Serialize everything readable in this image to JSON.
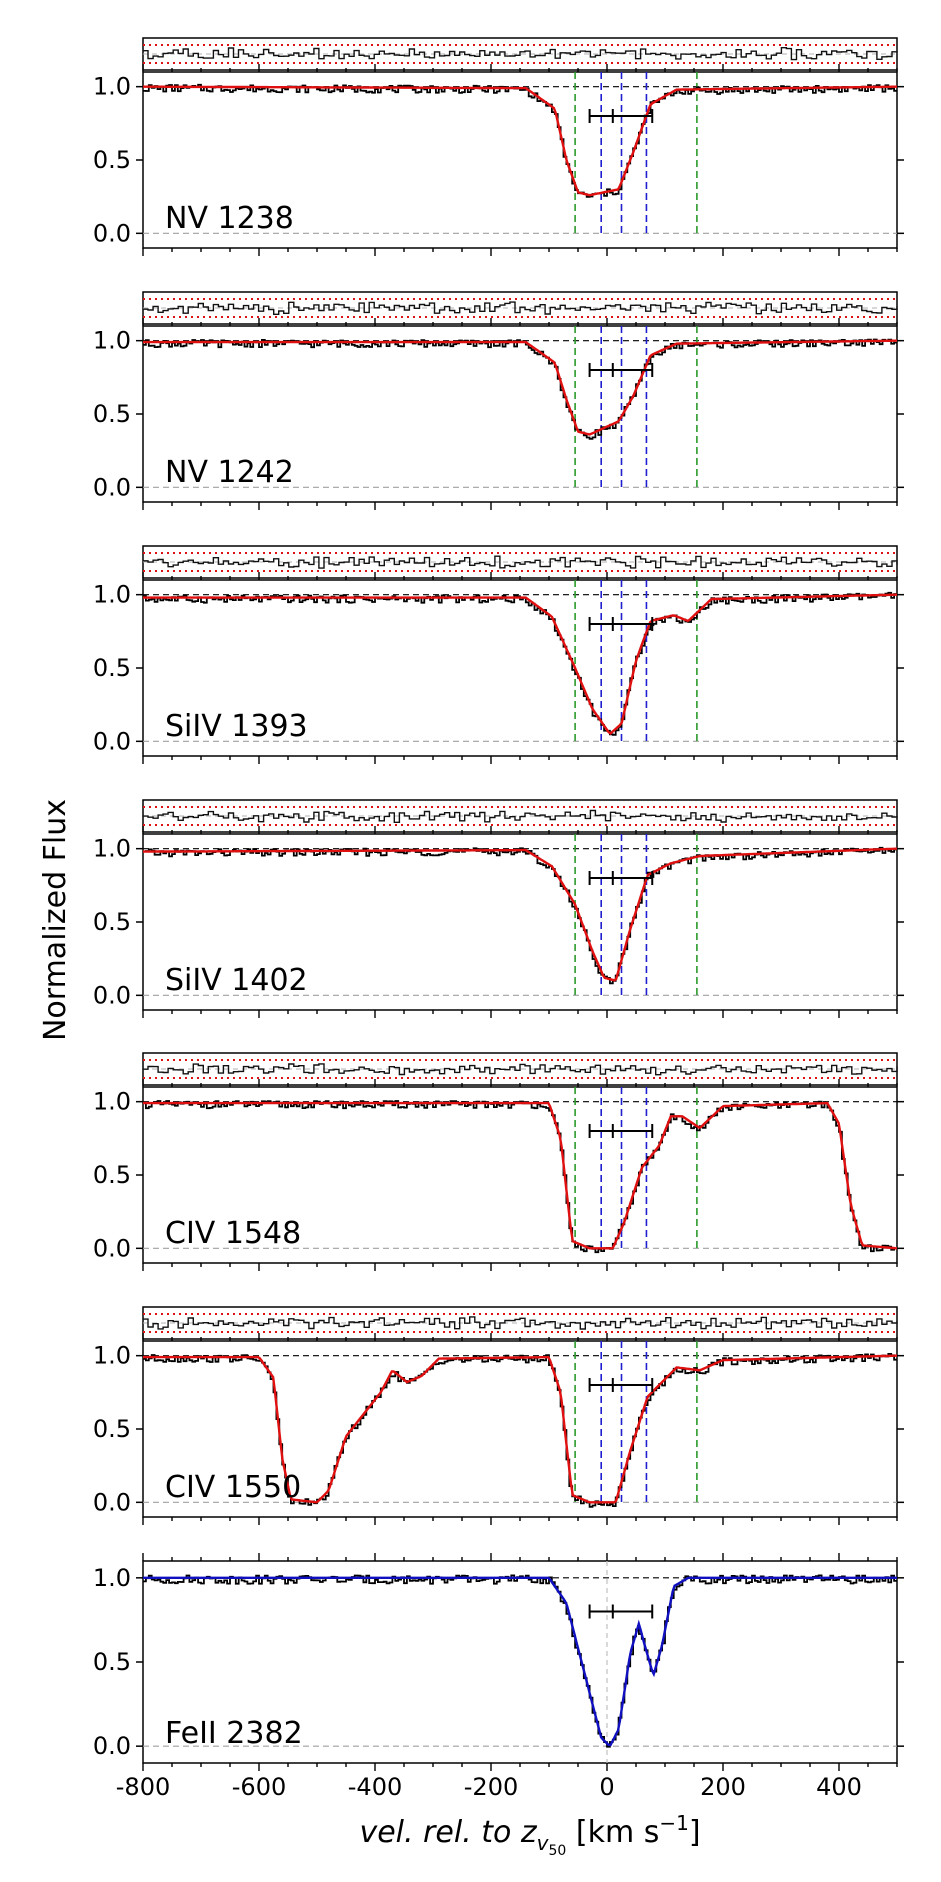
{
  "figure": {
    "ylabel": "Normalized Flux",
    "xlabel_main": "vel. rel. to z",
    "xlabel_sub": "v",
    "xlabel_subsub": "50",
    "xlabel_unit_open": " [km s",
    "xlabel_unit_exp": "−1",
    "xlabel_unit_close": "]"
  },
  "colors": {
    "data": "#000000",
    "model_red": "#e01010",
    "model_blue": "#1010c0",
    "residual_limit": "#e01010",
    "green_marker": "#2a9a2a",
    "blue_marker": "#1f1fd0",
    "zero_line": "#a0a0a0"
  },
  "chart_data": {
    "type": "line",
    "xlim": [
      -800,
      500
    ],
    "ylim": [
      -0.1,
      1.1
    ],
    "x_ticks": [
      -800,
      -600,
      -400,
      -200,
      0,
      200,
      400
    ],
    "x_tick_labels": [
      "-800",
      "-600",
      "-400",
      "-200",
      "0",
      "200",
      "400"
    ],
    "y_ticks": [
      0.0,
      0.5,
      1.0
    ],
    "y_tick_labels": [
      "0.0",
      "0.5",
      "1.0"
    ],
    "green_markers_kms": [
      -55,
      155
    ],
    "blue_markers_kms": [
      -10,
      25,
      68
    ],
    "velocity_bar": {
      "center": 10,
      "left": -30,
      "right": 78,
      "level": 0.8
    },
    "panels": [
      {
        "label": "NV 1238",
        "model_color": "red",
        "residual": true,
        "profile": [
          [
            -800,
            1.0
          ],
          [
            -140,
            0.99
          ],
          [
            -90,
            0.85
          ],
          [
            -70,
            0.5
          ],
          [
            -50,
            0.28
          ],
          [
            -30,
            0.26
          ],
          [
            20,
            0.3
          ],
          [
            45,
            0.55
          ],
          [
            75,
            0.88
          ],
          [
            120,
            0.98
          ],
          [
            500,
            1.0
          ]
        ]
      },
      {
        "label": "NV 1242",
        "model_color": "red",
        "residual": true,
        "profile": [
          [
            -800,
            0.99
          ],
          [
            -140,
            0.99
          ],
          [
            -90,
            0.85
          ],
          [
            -70,
            0.6
          ],
          [
            -50,
            0.38
          ],
          [
            -30,
            0.36
          ],
          [
            20,
            0.45
          ],
          [
            45,
            0.62
          ],
          [
            75,
            0.9
          ],
          [
            120,
            0.98
          ],
          [
            500,
            1.0
          ]
        ]
      },
      {
        "label": "SiIV 1393",
        "model_color": "red",
        "residual": true,
        "profile": [
          [
            -800,
            0.98
          ],
          [
            -140,
            0.98
          ],
          [
            -95,
            0.85
          ],
          [
            -55,
            0.5
          ],
          [
            -25,
            0.22
          ],
          [
            5,
            0.05
          ],
          [
            25,
            0.12
          ],
          [
            50,
            0.55
          ],
          [
            75,
            0.82
          ],
          [
            115,
            0.86
          ],
          [
            140,
            0.82
          ],
          [
            180,
            0.97
          ],
          [
            500,
            1.0
          ]
        ]
      },
      {
        "label": "SiIV 1402",
        "model_color": "red",
        "residual": true,
        "profile": [
          [
            -800,
            0.98
          ],
          [
            -140,
            0.99
          ],
          [
            -95,
            0.88
          ],
          [
            -55,
            0.62
          ],
          [
            -25,
            0.3
          ],
          [
            -5,
            0.12
          ],
          [
            15,
            0.1
          ],
          [
            40,
            0.45
          ],
          [
            70,
            0.82
          ],
          [
            110,
            0.9
          ],
          [
            160,
            0.95
          ],
          [
            500,
            1.0
          ]
        ]
      },
      {
        "label": "CIV 1548",
        "model_color": "red",
        "residual": true,
        "profile": [
          [
            -800,
            0.99
          ],
          [
            -100,
            0.99
          ],
          [
            -80,
            0.75
          ],
          [
            -60,
            0.05
          ],
          [
            -30,
            0.0
          ],
          [
            10,
            0.0
          ],
          [
            30,
            0.18
          ],
          [
            60,
            0.55
          ],
          [
            90,
            0.7
          ],
          [
            110,
            0.9
          ],
          [
            130,
            0.9
          ],
          [
            160,
            0.82
          ],
          [
            200,
            0.97
          ],
          [
            380,
            0.99
          ],
          [
            400,
            0.85
          ],
          [
            420,
            0.3
          ],
          [
            440,
            0.02
          ],
          [
            500,
            0.0
          ]
        ]
      },
      {
        "label": "CIV 1550",
        "model_color": "red",
        "residual": true,
        "profile": [
          [
            -800,
            0.99
          ],
          [
            -600,
            0.99
          ],
          [
            -575,
            0.85
          ],
          [
            -560,
            0.3
          ],
          [
            -545,
            0.02
          ],
          [
            -500,
            0.0
          ],
          [
            -480,
            0.08
          ],
          [
            -450,
            0.45
          ],
          [
            -420,
            0.6
          ],
          [
            -390,
            0.75
          ],
          [
            -370,
            0.9
          ],
          [
            -345,
            0.82
          ],
          [
            -320,
            0.86
          ],
          [
            -290,
            0.98
          ],
          [
            -100,
            0.99
          ],
          [
            -80,
            0.75
          ],
          [
            -60,
            0.05
          ],
          [
            -30,
            0.0
          ],
          [
            15,
            0.0
          ],
          [
            40,
            0.35
          ],
          [
            70,
            0.72
          ],
          [
            120,
            0.92
          ],
          [
            160,
            0.9
          ],
          [
            200,
            0.97
          ],
          [
            500,
            1.0
          ]
        ]
      },
      {
        "label": "FeII 2382",
        "model_color": "blue",
        "residual": false,
        "profile": [
          [
            -800,
            1.0
          ],
          [
            -100,
            1.0
          ],
          [
            -70,
            0.85
          ],
          [
            -40,
            0.45
          ],
          [
            -10,
            0.05
          ],
          [
            5,
            0.0
          ],
          [
            20,
            0.1
          ],
          [
            40,
            0.55
          ],
          [
            55,
            0.73
          ],
          [
            65,
            0.6
          ],
          [
            80,
            0.42
          ],
          [
            95,
            0.6
          ],
          [
            115,
            0.95
          ],
          [
            140,
            1.0
          ],
          [
            500,
            1.0
          ]
        ]
      }
    ]
  }
}
